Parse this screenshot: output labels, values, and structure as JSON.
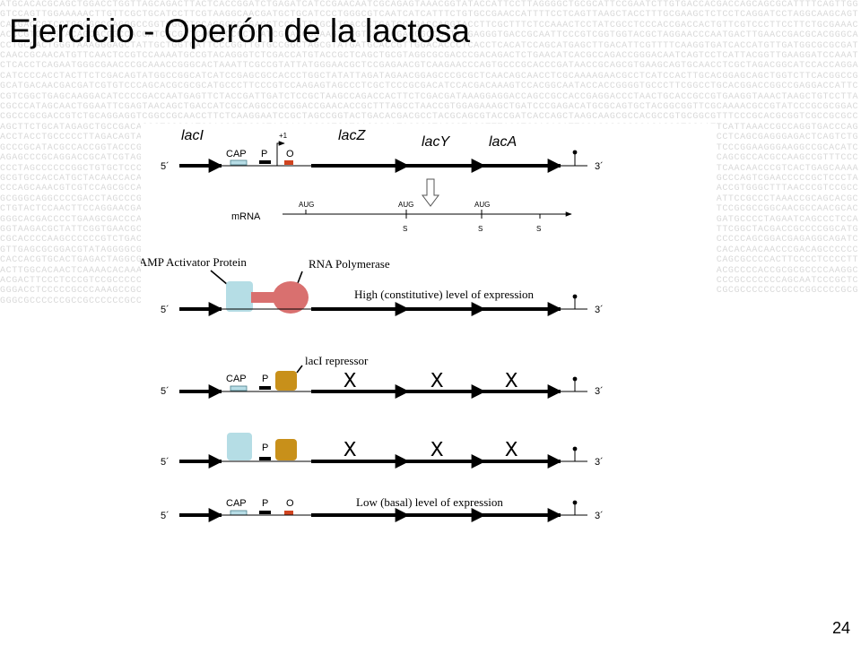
{
  "title": "Ejercicio - Operón de la lactosa",
  "page_number": "24",
  "background_sequence": "ATGCACACGCAGCTGGACCTGGTTAGCAGACTTACTCACCGGATCTGAGATCATCCGAACAATCGCAGAGTAAACGGTATACCATTCCTTAGGGGCTGCGCATTCCGAATCTTGTGACCACGACCAGCAGCGCATTTTCAGTTGGGTCCAGTTGGAAAAACTTGTTCGCTGCATCCTTCGTAAGGCAACGATGCTGCATCCCTGGGCGTCAATCATCATTTCTGTGCCGAACCATTTTCCTCAGTTAAGCTACCTTTGCGAAGCTCTCCTCAGGATCCTAGGCAAGCAGTCACGACCGTCCTGGGGCCGAGGGCCGGTCGGCTCCAGGGGCCGAGCTCCCATTTGCATCACCCTGATCCAGACCAGGTACCTTCGCTTTCTCCAAACTCCTATCGCCTCCCACCGACCACTGTTCGTCCCTTCCTTCTGCGAAACACCCGTGCAGTACAGCACGGCCACCATCGCGATCACCACCGCTCATCGCACGGGAAGTTGGTCCTGGGACGGCCGCTTTGAGGGTGACCGCAATTCCCGTCGGTGGTACGCTAGGAACCCAATGACTTGAACCGACGCACGGGCACCTGCGACTGGGTAAAGGGAGCTATTGCTGGTGATTCCCGGTTGTGCCGGCTAGCGTATGATGCACCGTTGGACACCCTCACCTCACATCCAGCATGAGCTTGACATTCGTTTTCAAGGTGATCACCATGTTGATGGCGCGCGATCAACCGCAACATGTTCAACTCCGTCCAAAATGCCGTACAGGGTCTCGACCATGTACCGCTCAGCTGCGTAGGCGCGACCCGACAGACTCTGAACATCACGCCAGACCGGGACAATCAGTCCTCATTACGGTTGAAGGATCCAAATCTCACCTCAGAATGGGCGAACCCGCAAACCGGGCACTAAATTCGCCGTATTATGGGAACGCTCCGAGAACGTCAAGAACCCAGTGCCCGCACCCGATAACCGCAGCGTGAAGCAGTGCAACCTCGCTAGACGGCATCCACCAGGACATCCCCACCTACTTCTCGACAGTATGGCCGGCATCATCCGAGCGCCACCCTGGCTATATTAGATAGAACGGAGCCCGCGCTCAACAGCAACCTCGCAAAAGAACGCCTCATCCACTTGCACGGAGCAGCTGGTCTTCACGGCCGGCATGACAACGACGATCGTGTCCCAGCACGCGCGCATGCCCTTCCCGTCCAAGAGTAGCCCTCGCTCCCGCGACATCCACGACAAAGTCCACGGCAATACCACCGGGGTGCCCTTCGGCCTGCACGGACCGGCCGAGGACCATTCCGTCGGCTGAGCAAGGACATCCCCGACCAATGAGTTCTACCGATTGATCTCCGCTAAGCCAGACCACTTCTCGACGATAAAGGAGGACCAGCCGCCACCGAGGACCCTAACTGCACCGCCGTGAAGGTAAACTAAGCTGTCCTTACGCCCATAGCAACTGGAATTCGAGTAACAGCTGACCATCGCCAGGCCGCGGACCGAACACCGCTTTAGCCTAACCGTGGAGAAAGCTGATCCCGAGACATGCGCAGTGCTACGGCGGTTCGCAAAACGCCGTATCCCGCGCGGACCGCCCGCGACCGTCTGCAGGAGGTCGGCCGCAACCTTCTCAAGGAATCCGCTAGCCGGTACTGACACGACGCCTACGCAGCGTACCGATCACCAGCTAAGCAAGCGCCACGCCGTGCGGCGTTTCCCGCACGCGGTCGCCGCGCCAGCTTCTGCATAGAGCTGCCGACAGGGTGCCGATCCAGCCTCCCGTACCAAGCCCGTGCTGAGCCCATACGCGTACCCTACCTTTACCTCCACACATTGCACCCCCGCGACACCCTCCAATTCATTAAACCGCCAGGTGACCCAGACCTACCTGCCCCCTTAGACAGTATCGAAGTAGCCCCCGAGGGCCCCGCTCGACACGCTCGTCACCCATTCGTAGCGTTGAACGGCATTTCTACAACGCCAGCTTCAAGACCGGTAGCATCCCTCAGCGAGGGAGACTCAGTCTGGCCCGCATACGCCACCGGTACCCGTACCCGGGGCGCGATCCTCGACCTGCCCAAGCTGATCATACGAACCGGGCCCCGCAACCCCAAAGCCCAGCATAGCCCCCTCGCCTTCTGTACGCCATCCCGGAAGGGAAGGCCGCACATCAGAGCCCGCAGGACCGCATCGTAGCAAGTTACGCCGGATTCGCCCTACCAACCACCCGCAAACACCGACCGTCTCGCACTCAATCTCTGTCCGCATAAAACCCAGCACTTGCGCCATCGCCCAGCGCCACGCCAAGCCGTTTCCCCCCTAGCCCCCCGGCTGTGCTCCCCAAGGCGCTAGGCGACCACGGCCCAAGCACACCCGGCTCCAGAACCCTTCGACGAGCAGCGACCATCACGAACAGACGCTGTGAGCCGCACCAATCATCAACAACCCGTCACTGAGCAAAAGCGTGCCACCATGCTACAACCACAACCAGGAGTTGTCGCAGGCCCCTCCTCCCAGGTAGAACCGCCAGACGCCCTCCAAGCTGTAGCTCTCCGCGGATTCCCCCGGCGCGCTACCATCTCCGCCCAGTCGAACCCCCGCTCCCTACCCAGCAAACGTCGTCCAGCGCCAAACCCGTAAACCCCGCTATGCCTCCCCATCAGAACGCCCGTCAGCGTCAACACAGACAGTCCTTCAACCAGCTAGAGGACCCCCAACCGCGGGCCCCACCGTGGGCTTTAACCCGTCCGCCGCGGGCAGGCCCCGACCTAGCCCGACAGCGCCCATCGCCCACCACACCAGCGGACCGCCGTGCGTGCTCAATCCCAACGACTACACCCTGAGCCACCCGTAGGTCGGAATCGACCTGCCGCATTCCGCCCTAAACCGCAGCACGCCTGTACTCCAACTTCCAGGAACGAGAGCGCAGTCCATCCGACCCCCGTCGTCTCAGCTCACTATACTGCTGTACCGAATCTCTTGCACCAACCCCTCGCGCCGACCCCCTTACCCGCCTCGTCCGCGCCGGCAACGCCAACGCACGGGCACGACCCCTGAAGCGACCCAGCGCCAGCTTATCCCATTGGTCCACCTCAGACCGCTTCTCACCCCGACTCCGCCATATCCCCACCACCCTCGGAGTACCCAGCGACGCATCGTCCCCGATGCCCCTAGAATCAGCCCTCCAGGTAAGACGCTATTCGGTGAACGCAACACGAACGACAATCCGACATCACTGCCCAAACAGCGCGCGCCACCTAGCCCTCCAGCTCCGCAGGATGCCTGCTCAGCCAGCTCTGTGCCAGTCCTTCGGCTACGACCGCCCCGGCATGCGCACCCCAAGCCCCCCGTCTGACCGGCCGCCCCACCCAAACGCCCGACGCCCCCCGTGCATTACCGGCCGGCATTACCTTCCTTCTCTTCCCCGAGACCAACCCACCTGCCCGCCGACCACCCCCAGCGGACGAGAGGCAGATCGTTGAGCGCGGACGTATAGGGGCGCCCAGCCCTAAGCCCGGCGGAGCGCCCCCACTGTGCCCAGCCAACACCCAATCCCCTCCACAGACCACACCACCTTGTCCCGGGACGTTAAAGCTGGCACACAACAACCCGACAGCCCCCCCACCACGTGCACTGAGACTAGGCGCAGACCTTCCGCGCCGACGGCCCAGCACGTCCGCGGCCCCCCCGGCCAACCTACCCTCCCATCCGGTCTAGCCGATGCACCCCCGCTTCGCCCAGGCCAGCGCCCCACTTCCCCTCCCCTTACTTGGCACAACTCAAAACACAAACCACCAGACGCGCGCCCGTTCGAGACCATAGACTGCTGCCCCCCCCAACTACCTTGCCTCTCCCGGAATCACCGGCACCACCCCCCACAGCCACCCGACGCCCCACCGCGCGCCCCAAGGCACGACTTCCCTCCCGTCCGCCCCCCACAGACCGGCCCATCGCCACCCTACTCCCGCCGCCCCGTTACGAGCCCCACCCCTCCCCCAAAGCGAACCGCCAGACCCCGCCCCAGACTCAAAGCCCCGCCCCCCCAGCAATCCCGCTCGGGACCTCCCCCGCCCAAAGCCGCGGACCCGCCCCGCGCCCCCCCCGGTATCCCCCACGCTGTACCCCCCCCGACCAGCCCGCCACCGCCGCCCCGCGTCGGCCCCACCGCCCCCACACCCCGCGCCCCCCCGCCCGGCCCCGCGGGGCGCCCCCCGCCGCCCCCCGCCAGCCACCCCCCCCGCCCGCCCC",
  "top_diagram": {
    "genes": {
      "lacI": "lacI",
      "lacZ": "lacZ",
      "lacY": "lacY",
      "lacA": "lacA"
    },
    "elements": {
      "cap": "CAP",
      "promoter": "P",
      "operator": "O",
      "plus_one": "+1"
    },
    "five_prime": "5´",
    "three_prime": "3´",
    "mrna_label": "mRNA",
    "aug_labels": [
      "AUG",
      "AUG",
      "AUG"
    ],
    "stop_labels": [
      "S",
      "S",
      "S"
    ]
  },
  "panel_high": {
    "cap_protein_label": "cAMP Activator Protein",
    "polymerase_label": "RNA Polymerase",
    "expression_text": "High (constitutive) level of expression",
    "five_prime": "5´",
    "three_prime": "3´"
  },
  "panel_repressor": {
    "repressor_label": "lacI repressor",
    "cap": "CAP",
    "promoter": "P",
    "x_marks": [
      "X",
      "X",
      "X"
    ],
    "five_prime": "5´",
    "three_prime": "3´"
  },
  "panel_cap_repressor": {
    "promoter": "P",
    "x_marks": [
      "X",
      "X",
      "X"
    ],
    "five_prime": "5´",
    "three_prime": "3´"
  },
  "panel_low": {
    "cap": "CAP",
    "promoter": "P",
    "operator": "O",
    "expression_text": "Low  (basal) level of expression",
    "five_prime": "5´",
    "three_prime": "3´"
  },
  "colors": {
    "cap_box": "#b7dde6",
    "cap_protein": "#b5dde5",
    "polymerase": "#d9706f",
    "repressor": "#c8901a",
    "operator": "#d0431f",
    "background_text": "#d9d9d9"
  }
}
